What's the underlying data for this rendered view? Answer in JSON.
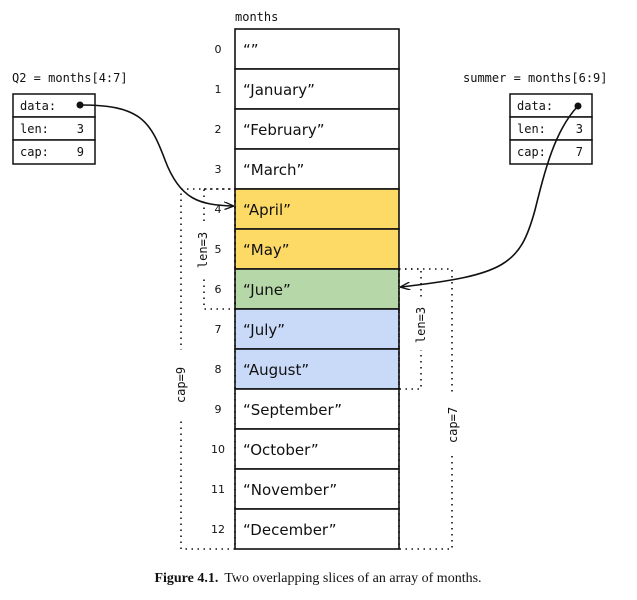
{
  "array": {
    "label": "months",
    "cells": [
      {
        "index": "0",
        "value": "“”",
        "color": "#ffffff"
      },
      {
        "index": "1",
        "value": "“January”",
        "color": "#ffffff"
      },
      {
        "index": "2",
        "value": "“February”",
        "color": "#ffffff"
      },
      {
        "index": "3",
        "value": "“March”",
        "color": "#ffffff"
      },
      {
        "index": "4",
        "value": "“April”",
        "color": "#fdd966"
      },
      {
        "index": "5",
        "value": "“May”",
        "color": "#fdd966"
      },
      {
        "index": "6",
        "value": "“June”",
        "color": "#b6d7a8"
      },
      {
        "index": "7",
        "value": "“July”",
        "color": "#c9daf8"
      },
      {
        "index": "8",
        "value": "“August”",
        "color": "#c9daf8"
      },
      {
        "index": "9",
        "value": "“September”",
        "color": "#ffffff"
      },
      {
        "index": "10",
        "value": "“October”",
        "color": "#ffffff"
      },
      {
        "index": "11",
        "value": "“November”",
        "color": "#ffffff"
      },
      {
        "index": "12",
        "value": "“December”",
        "color": "#ffffff"
      }
    ]
  },
  "q2": {
    "label": "Q2 = months[4:7]",
    "data_label": "data:",
    "len_label": "len:",
    "len": "3",
    "cap_label": "cap:",
    "cap": "9",
    "len_annot": "len=3",
    "cap_annot": "cap=9"
  },
  "summer": {
    "label": "summer = months[6:9]",
    "data_label": "data:",
    "len_label": "len:",
    "len": "3",
    "cap_label": "cap:",
    "cap": "7",
    "len_annot": "len=3",
    "cap_annot": "cap=7"
  },
  "caption": {
    "figure": "Figure 4.1.",
    "text": "Two overlapping slices of an array of months."
  }
}
